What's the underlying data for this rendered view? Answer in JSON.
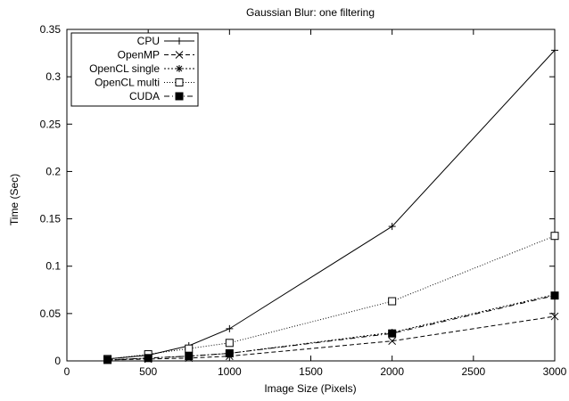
{
  "chart_data": {
    "type": "line",
    "title": "Gaussian Blur: one filtering",
    "xlabel": "Image Size (Pixels)",
    "ylabel": "Time (Sec)",
    "xlim": [
      0,
      3000
    ],
    "ylim": [
      0,
      0.35
    ],
    "xticks": [
      0,
      500,
      1000,
      1500,
      2000,
      2500,
      3000
    ],
    "yticks": [
      0,
      0.05,
      0.1,
      0.15,
      0.2,
      0.25,
      0.3,
      0.35
    ],
    "grid": false,
    "legend_position": "top-left",
    "x": [
      250,
      500,
      750,
      1000,
      2000,
      3000
    ],
    "series": [
      {
        "name": "CPU",
        "marker": "plus",
        "dash": "solid",
        "values": [
          0.002,
          0.006,
          0.016,
          0.034,
          0.142,
          0.328
        ]
      },
      {
        "name": "OpenMP",
        "marker": "x",
        "dash": "dashed",
        "values": [
          0.001,
          0.002,
          0.003,
          0.005,
          0.021,
          0.047
        ]
      },
      {
        "name": "OpenCL single",
        "marker": "asterisk",
        "dash": "dotted",
        "values": [
          0.001,
          0.003,
          0.005,
          0.008,
          0.03,
          0.07
        ]
      },
      {
        "name": "OpenCL multi",
        "marker": "open-square",
        "dash": "fine-dotted",
        "values": [
          0.002,
          0.007,
          0.013,
          0.019,
          0.063,
          0.132
        ]
      },
      {
        "name": "CUDA",
        "marker": "filled-square",
        "dash": "dash-dot",
        "values": [
          0.001,
          0.003,
          0.005,
          0.008,
          0.029,
          0.069
        ]
      }
    ]
  }
}
